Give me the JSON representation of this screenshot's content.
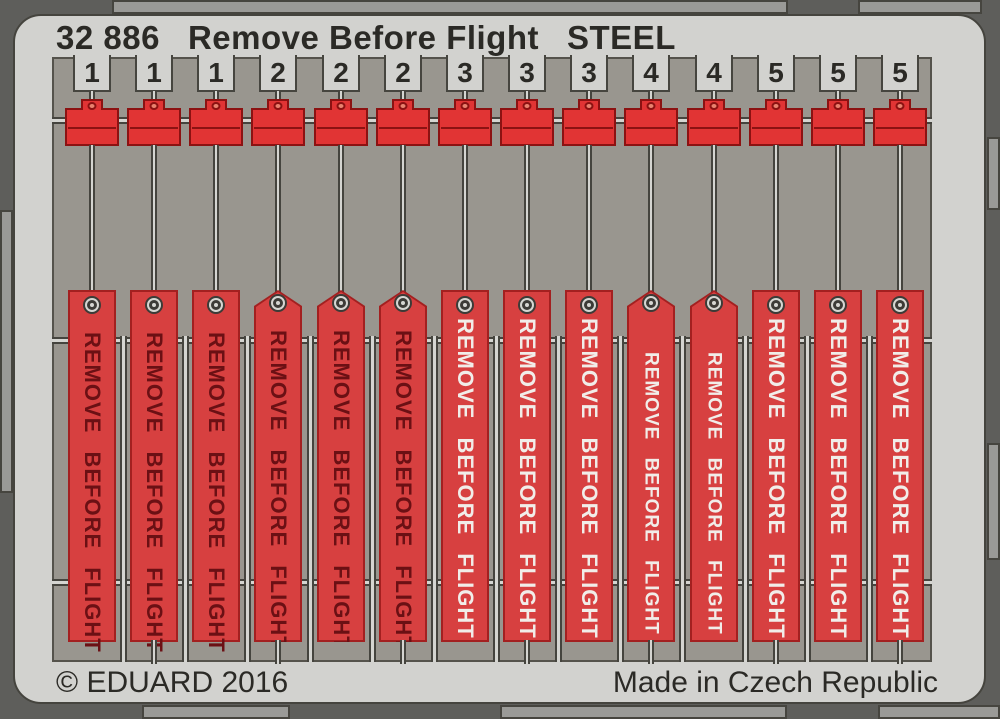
{
  "header": {
    "part_number": "32 886",
    "title": "Remove Before Flight",
    "finish": "STEEL"
  },
  "footer": {
    "copyright": "© EDUARD 2016",
    "made_in": "Made in Czech Republic"
  },
  "sheet": {
    "flag_text": "REMOVE BEFORE FLIGHT",
    "columns": [
      {
        "number": "1",
        "flag_text": "REMOVE BEFORE FLIGHT",
        "text_color": "dark",
        "peaked": false,
        "small_text": false,
        "bottom_wire": false
      },
      {
        "number": "1",
        "flag_text": "REMOVE BEFORE FLIGHT",
        "text_color": "dark",
        "peaked": false,
        "small_text": false,
        "bottom_wire": true
      },
      {
        "number": "1",
        "flag_text": "REMOVE BEFORE FLIGHT",
        "text_color": "dark",
        "peaked": false,
        "small_text": false,
        "bottom_wire": false
      },
      {
        "number": "2",
        "flag_text": "REMOVE BEFORE FLIGHT",
        "text_color": "dark",
        "peaked": true,
        "small_text": false,
        "bottom_wire": true
      },
      {
        "number": "2",
        "flag_text": "REMOVE BEFORE FLIGHT",
        "text_color": "dark",
        "peaked": true,
        "small_text": false,
        "bottom_wire": false
      },
      {
        "number": "2",
        "flag_text": "REMOVE BEFORE FLIGHT",
        "text_color": "dark",
        "peaked": true,
        "small_text": false,
        "bottom_wire": true
      },
      {
        "number": "3",
        "flag_text": "REMOVE BEFORE FLIGHT",
        "text_color": "white",
        "peaked": false,
        "small_text": false,
        "bottom_wire": false
      },
      {
        "number": "3",
        "flag_text": "REMOVE BEFORE FLIGHT",
        "text_color": "white",
        "peaked": false,
        "small_text": false,
        "bottom_wire": true
      },
      {
        "number": "3",
        "flag_text": "REMOVE BEFORE FLIGHT",
        "text_color": "white",
        "peaked": false,
        "small_text": false,
        "bottom_wire": false
      },
      {
        "number": "4",
        "flag_text": "REMOVE BEFORE FLIGHT",
        "text_color": "white",
        "peaked": true,
        "small_text": true,
        "bottom_wire": true
      },
      {
        "number": "4",
        "flag_text": "REMOVE BEFORE FLIGHT",
        "text_color": "white",
        "peaked": true,
        "small_text": true,
        "bottom_wire": false
      },
      {
        "number": "5",
        "flag_text": "REMOVE BEFORE FLIGHT",
        "text_color": "white",
        "peaked": false,
        "small_text": false,
        "bottom_wire": true
      },
      {
        "number": "5",
        "flag_text": "REMOVE BEFORE FLIGHT",
        "text_color": "white",
        "peaked": false,
        "small_text": false,
        "bottom_wire": false
      },
      {
        "number": "5",
        "flag_text": "REMOVE BEFORE FLIGHT",
        "text_color": "white",
        "peaked": false,
        "small_text": false,
        "bottom_wire": true
      }
    ]
  },
  "colors": {
    "background": "#5e5e5b",
    "sheet": "#d2d2cf",
    "interior": "#99968f",
    "flag_red": "#d74040",
    "part_red": "#e13434",
    "red_outline": "#8c1212",
    "dark_text": "#6b1014",
    "white_text": "#f1ede9",
    "print_text": "#2b2a26"
  }
}
